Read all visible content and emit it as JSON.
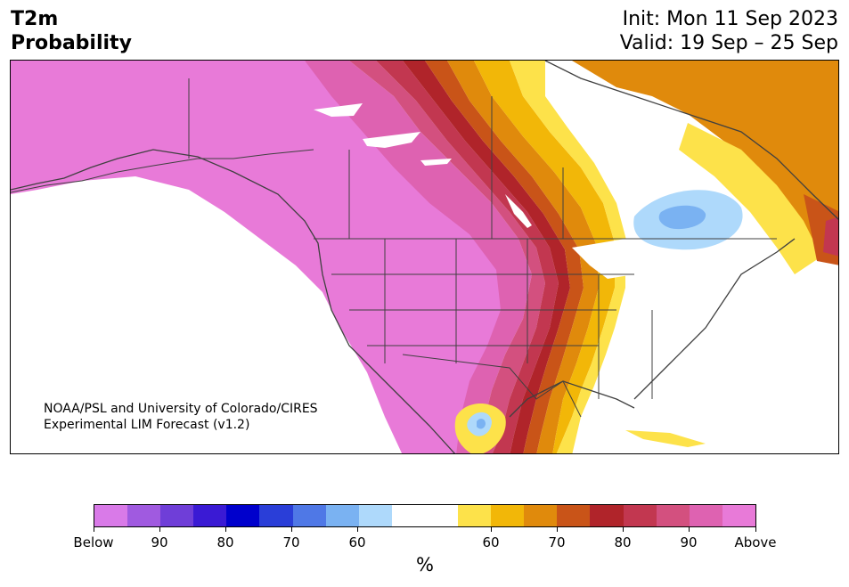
{
  "header": {
    "title_line1": "T2m",
    "title_line2": "Probability",
    "init": "Init: Mon 11 Sep 2023",
    "valid": "Valid: 19 Sep – 25 Sep"
  },
  "credit": {
    "line1": "NOAA/PSL and University of Colorado/CIRES",
    "line2": "Experimental LIM Forecast (v1.2)"
  },
  "colorbar": {
    "colors": [
      "#d97ae8",
      "#a05ae0",
      "#6f3ed8",
      "#3a1ad4",
      "#0000cc",
      "#2a3ed8",
      "#4f78e6",
      "#7ab2f2",
      "#aed9fb",
      "#ffffff",
      "#ffffff",
      "#fde24a",
      "#f2b708",
      "#e08a0c",
      "#c95418",
      "#b0242a",
      "#c23750",
      "#d3507f",
      "#de62b1",
      "#e87ad8"
    ],
    "ticks": [
      "Below",
      "90",
      "80",
      "70",
      "60",
      "60",
      "70",
      "80",
      "90",
      "Above"
    ],
    "unit": "%"
  },
  "map": {
    "fill_colors": {
      "above_max": "#e87ad8",
      "above_90": "#de62b1",
      "above_85": "#d3507f",
      "above_80": "#c23750",
      "above_75": "#b0242a",
      "above_70": "#c95418",
      "above_65": "#e08a0c",
      "above_60": "#f2b708",
      "above_55": "#fde24a",
      "below_55": "#aed9fb",
      "below_60": "#7ab2f2",
      "neutral": "#ffffff",
      "border": "#404040"
    }
  }
}
